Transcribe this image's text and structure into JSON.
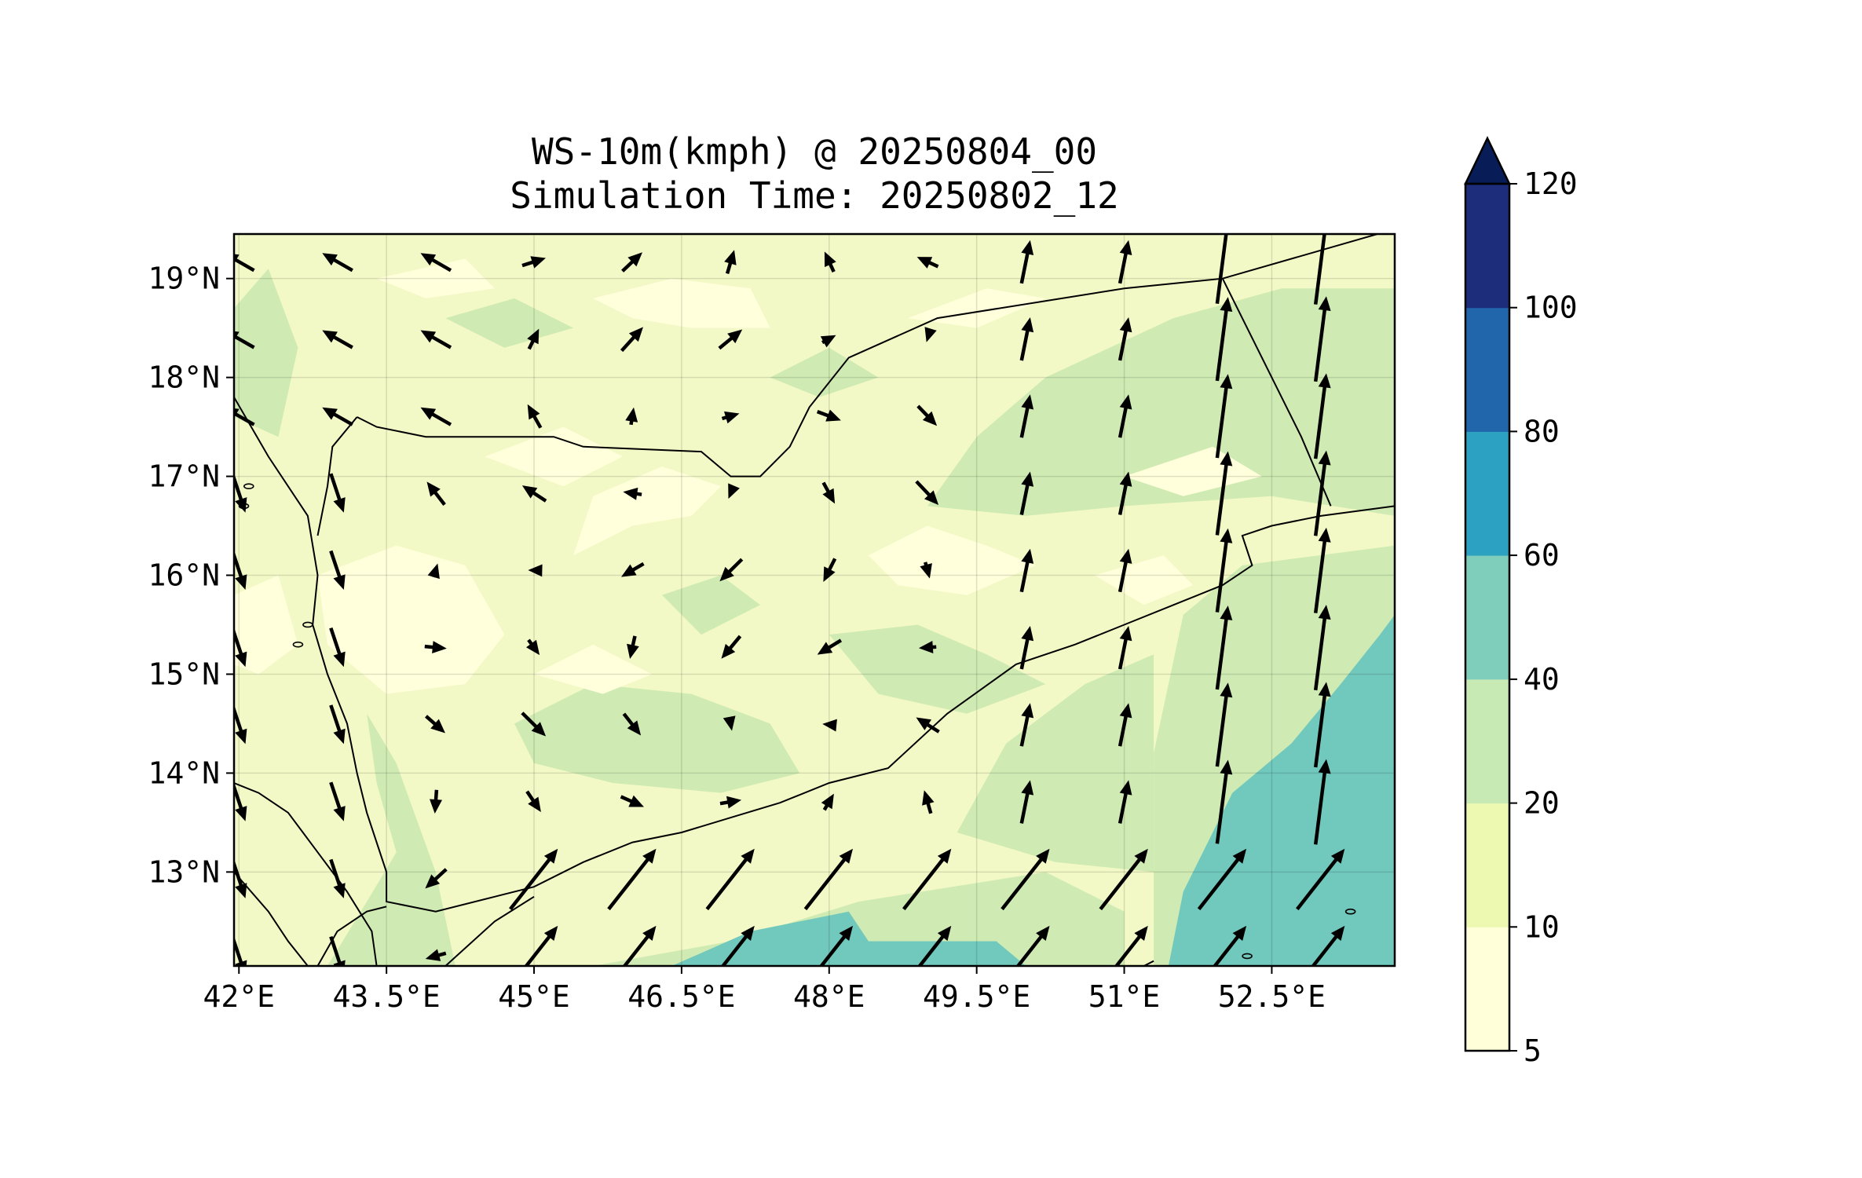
{
  "title": {
    "line1": "WS-10m(kmph) @ 20250804_00",
    "line2": "Simulation Time: 20250802_12"
  },
  "map": {
    "lon_range": [
      41.95,
      53.75
    ],
    "lat_range": [
      12.05,
      19.45
    ],
    "x_ticks": [
      {
        "value": 42.0,
        "label": "42°E"
      },
      {
        "value": 43.5,
        "label": "43.5°E"
      },
      {
        "value": 45.0,
        "label": "45°E"
      },
      {
        "value": 46.5,
        "label": "46.5°E"
      },
      {
        "value": 48.0,
        "label": "48°E"
      },
      {
        "value": 49.5,
        "label": "49.5°E"
      },
      {
        "value": 51.0,
        "label": "51°E"
      },
      {
        "value": 52.5,
        "label": "52.5°E"
      }
    ],
    "y_ticks": [
      {
        "value": 19,
        "label": "19°N"
      },
      {
        "value": 18,
        "label": "18°N"
      },
      {
        "value": 17,
        "label": "17°N"
      },
      {
        "value": 16,
        "label": "16°N"
      },
      {
        "value": 15,
        "label": "15°N"
      },
      {
        "value": 14,
        "label": "14°N"
      },
      {
        "value": 13,
        "label": "13°N"
      }
    ],
    "grid": true,
    "fill_colors": {
      "land_base": "#f3f9c6",
      "band_5_10": "#ffffdb",
      "band_10_20": "#edf8b6",
      "band_20_40": "#cfebb3",
      "band_40_60": "#71c8bc"
    },
    "coast_color": "#000000",
    "arrow_color": "#000000"
  },
  "colorbar": {
    "levels": [
      5,
      10,
      20,
      40,
      60,
      80,
      100,
      120
    ],
    "labels": [
      "5",
      "10",
      "20",
      "40",
      "60",
      "80",
      "100",
      "120"
    ],
    "colors": [
      "#ffffd9",
      "#edf8b1",
      "#c7e9b4",
      "#7fcdbb",
      "#2ca1c1",
      "#2165ab",
      "#1e2c7c"
    ],
    "extend_color": "#081d58",
    "extend": "max"
  }
}
